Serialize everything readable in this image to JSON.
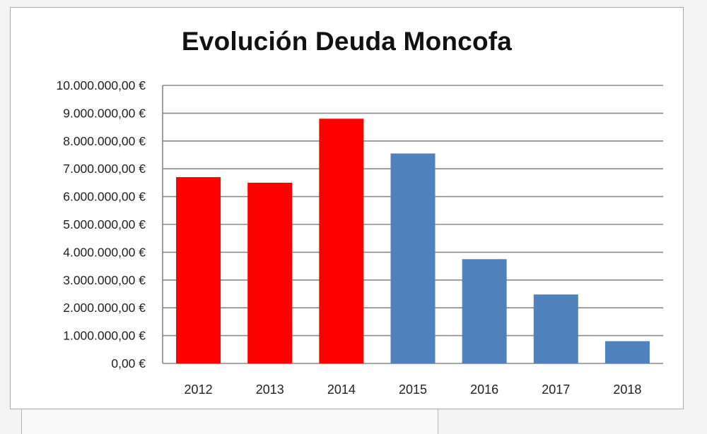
{
  "chart_data": {
    "type": "bar",
    "title": "Evolución Deuda Moncofa",
    "xlabel": "",
    "ylabel": "",
    "categories": [
      "2012",
      "2013",
      "2014",
      "2015",
      "2016",
      "2017",
      "2018"
    ],
    "values": [
      6700000,
      6500000,
      8800000,
      7550000,
      3750000,
      2480000,
      800000
    ],
    "bar_colors": [
      "#ff0000",
      "#ff0000",
      "#ff0000",
      "#4f81bd",
      "#4f81bd",
      "#4f81bd",
      "#4f81bd"
    ],
    "ylim": [
      0,
      10000000
    ],
    "yticks": [
      0,
      1000000,
      2000000,
      3000000,
      4000000,
      5000000,
      6000000,
      7000000,
      8000000,
      9000000,
      10000000
    ],
    "ytick_labels": [
      "0,00 €",
      "1.000.000,00 €",
      "2.000.000,00 €",
      "3.000.000,00 €",
      "4.000.000,00 €",
      "5.000.000,00 €",
      "6.000.000,00 €",
      "7.000.000,00 €",
      "8.000.000,00 €",
      "9.000.000,00 €",
      "10.000.000,00 €"
    ],
    "grid": true,
    "legend": "none"
  },
  "colors": {
    "gridline": "#888888",
    "axis": "#888888"
  }
}
